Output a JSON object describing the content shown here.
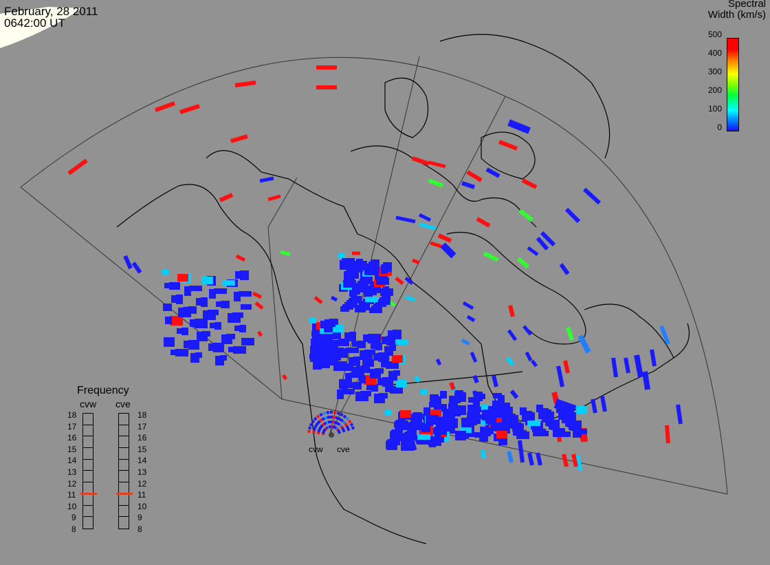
{
  "header": {
    "date": "February, 28 2011",
    "time": "0642:00 UT"
  },
  "colorbar": {
    "title_line1": "Spectral",
    "title_line2": "Width (km/s)",
    "ticks": [
      "500",
      "400",
      "300",
      "200",
      "100",
      "0"
    ],
    "min": 0,
    "max": 500
  },
  "frequency": {
    "title": "Frequency",
    "radars": [
      {
        "name": "cvw",
        "value_mhz": 11
      },
      {
        "name": "cve",
        "value_mhz": 11
      }
    ],
    "ticks": [
      "18",
      "17",
      "16",
      "15",
      "14",
      "13",
      "12",
      "11",
      "10",
      "9",
      "8"
    ]
  },
  "radar_sites": {
    "cvw": "cvw",
    "cve": "cve"
  },
  "colors": {
    "background": "#929292",
    "low": "#1010ff",
    "high": "#ff0000",
    "mid": "#00ff40",
    "ocean_ice": "#fffff0"
  }
}
